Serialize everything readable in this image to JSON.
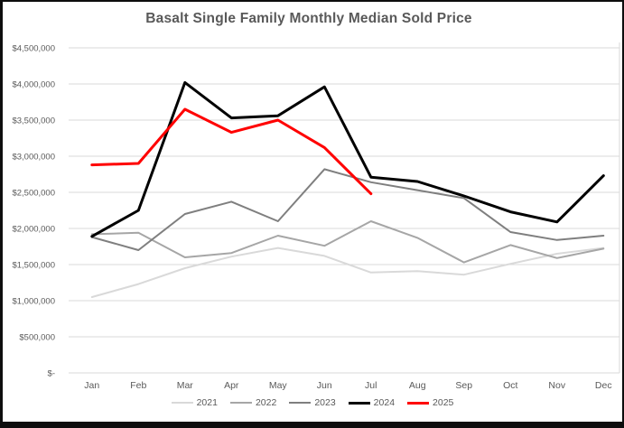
{
  "chart_data": {
    "type": "line",
    "title": "Basalt Single Family Monthly Median Sold Price",
    "categories": [
      "Jan",
      "Feb",
      "Mar",
      "Apr",
      "May",
      "Jun",
      "Jul",
      "Aug",
      "Sep",
      "Oct",
      "Nov",
      "Dec"
    ],
    "series": [
      {
        "name": "2021",
        "color": "#d9d9d9",
        "thick": false,
        "values": [
          1050000,
          1230000,
          1450000,
          1610000,
          1730000,
          1620000,
          1390000,
          1410000,
          1360000,
          1510000,
          1650000,
          1730000
        ]
      },
      {
        "name": "2022",
        "color": "#a6a6a6",
        "thick": false,
        "values": [
          1920000,
          1940000,
          1600000,
          1660000,
          1900000,
          1760000,
          2100000,
          1870000,
          1530000,
          1770000,
          1590000,
          1720000
        ]
      },
      {
        "name": "2023",
        "color": "#7f7f7f",
        "thick": false,
        "values": [
          1880000,
          1700000,
          2200000,
          2370000,
          2100000,
          2820000,
          2640000,
          2530000,
          2420000,
          1950000,
          1840000,
          1900000
        ]
      },
      {
        "name": "2024",
        "color": "#000000",
        "thick": true,
        "values": [
          1890000,
          2250000,
          4020000,
          3530000,
          3560000,
          3960000,
          2710000,
          2650000,
          2450000,
          2230000,
          2090000,
          2730000
        ]
      },
      {
        "name": "2025",
        "color": "#ff0000",
        "thick": true,
        "values": [
          2880000,
          2900000,
          3650000,
          3330000,
          3500000,
          3120000,
          2480000,
          null,
          null,
          null,
          null,
          null
        ]
      }
    ],
    "y_axis": {
      "min": 0,
      "max": 4500000,
      "step": 500000,
      "tick_labels": [
        "$-",
        "$500,000",
        "$1,000,000",
        "$1,500,000",
        "$2,000,000",
        "$2,500,000",
        "$3,000,000",
        "$3,500,000",
        "$4,000,000",
        "$4,500,000"
      ]
    },
    "grid": true,
    "legend_position": "bottom",
    "colors": {
      "gridline": "#d9d9d9",
      "axis_text": "#595959",
      "title_text": "#595959"
    }
  }
}
